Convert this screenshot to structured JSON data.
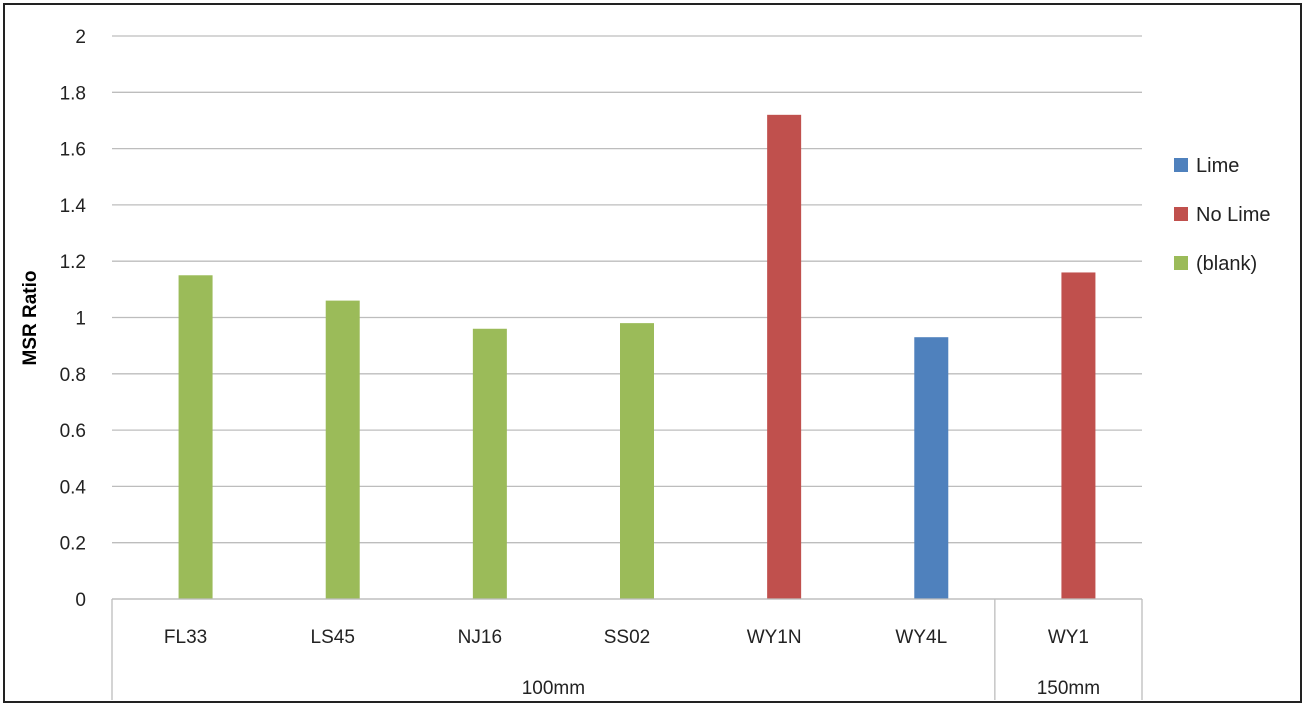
{
  "chart_data": {
    "type": "bar",
    "ylabel": "MSR Ratio",
    "ylim": [
      0,
      2
    ],
    "yticks": [
      "0",
      "0.2",
      "0.4",
      "0.6",
      "0.8",
      "1",
      "1.2",
      "1.4",
      "1.6",
      "1.8",
      "2"
    ],
    "grid": true,
    "legend_position": "right",
    "categories": [
      "FL33",
      "LS45",
      "NJ16",
      "SS02",
      "WY1N",
      "WY4L",
      "WY1"
    ],
    "groups": [
      {
        "label": "100mm",
        "categories": [
          "FL33",
          "LS45",
          "NJ16",
          "SS02",
          "WY1N",
          "WY4L"
        ]
      },
      {
        "label": "150mm",
        "categories": [
          "WY1"
        ]
      }
    ],
    "series": [
      {
        "name": "Lime",
        "color": "#4f81bd",
        "values": [
          null,
          null,
          null,
          null,
          null,
          0.93,
          null
        ]
      },
      {
        "name": "No Lime",
        "color": "#c0504d",
        "values": [
          null,
          null,
          null,
          null,
          1.72,
          null,
          1.16
        ]
      },
      {
        "name": "(blank)",
        "color": "#9bbb59",
        "values": [
          1.15,
          1.06,
          0.96,
          0.98,
          null,
          null,
          null
        ]
      }
    ]
  }
}
